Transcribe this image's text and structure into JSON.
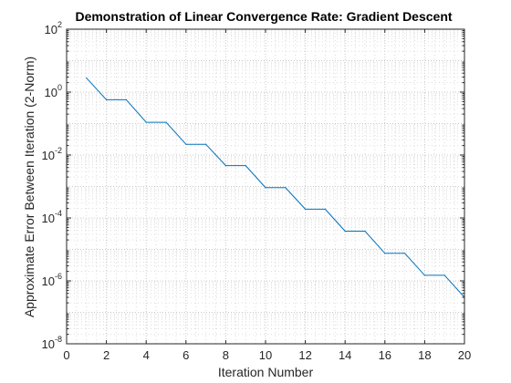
{
  "chart_data": {
    "type": "line",
    "title": "Demonstration of Linear Convergence Rate: Gradient Descent",
    "xlabel": "Iteration Number",
    "ylabel": "Approximate Error Between Iteration (2-Norm)",
    "xlim": [
      0,
      20
    ],
    "ylim_log10": [
      -8,
      2
    ],
    "y_scale": "log",
    "grid": "on (major and minor, dotted)",
    "x_ticks": [
      "0",
      "2",
      "4",
      "6",
      "8",
      "10",
      "12",
      "14",
      "16",
      "18",
      "20"
    ],
    "y_ticks": [
      {
        "base": "10",
        "exp": "-8"
      },
      {
        "base": "10",
        "exp": "-6"
      },
      {
        "base": "10",
        "exp": "-4"
      },
      {
        "base": "10",
        "exp": "-2"
      },
      {
        "base": "10",
        "exp": "0"
      },
      {
        "base": "10",
        "exp": "2"
      }
    ],
    "series": [
      {
        "color": "#0072bd",
        "x": [
          1,
          2,
          3,
          4,
          5,
          6,
          7,
          8,
          9,
          10,
          11,
          12,
          13,
          14,
          15,
          16,
          17,
          18,
          19,
          20
        ],
        "y": [
          2.8,
          0.57,
          0.57,
          0.11,
          0.11,
          0.022,
          0.022,
          0.0046,
          0.0046,
          0.00092,
          0.00092,
          0.00019,
          0.00019,
          3.8e-05,
          3.8e-05,
          7.5e-06,
          7.5e-06,
          1.5e-06,
          1.5e-06,
          3e-07
        ]
      }
    ]
  }
}
